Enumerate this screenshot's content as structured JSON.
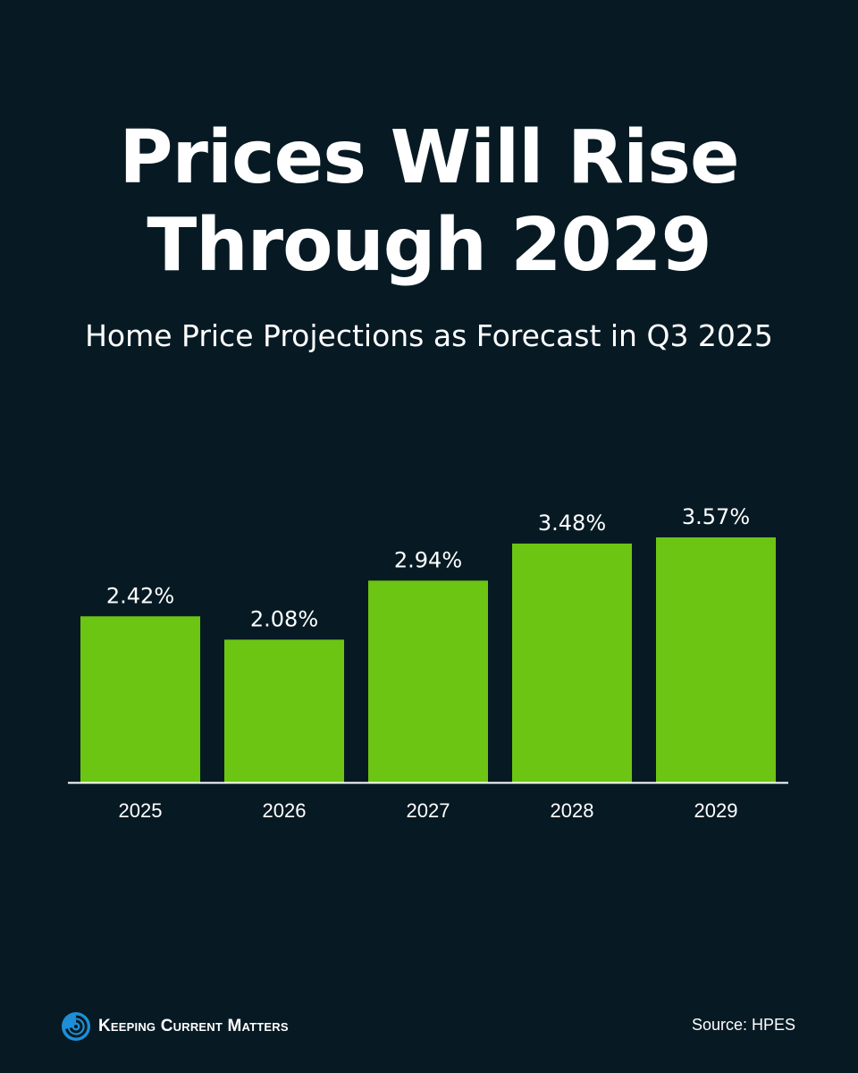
{
  "colors": {
    "background": "#071a24",
    "bar": "#6cc513",
    "text": "#ffffff",
    "logo_blue": "#1e8fd6"
  },
  "chart_data": {
    "type": "bar",
    "title": "Prices Will Rise Through 2029",
    "subtitle": "Home Price Projections as Forecast in Q3 2025",
    "categories": [
      "2025",
      "2026",
      "2027",
      "2028",
      "2029"
    ],
    "values": [
      2.42,
      2.08,
      2.94,
      3.48,
      3.57
    ],
    "value_labels": [
      "2.42%",
      "2.08%",
      "2.94%",
      "3.48%",
      "3.57%"
    ],
    "xlabel": "",
    "ylabel": "",
    "ylim": [
      0,
      3.57
    ],
    "grid": false
  },
  "footer": {
    "brand": "Keeping Current Matters",
    "brand_icon": "swirl-logo-icon",
    "source": "Source: HPES"
  }
}
